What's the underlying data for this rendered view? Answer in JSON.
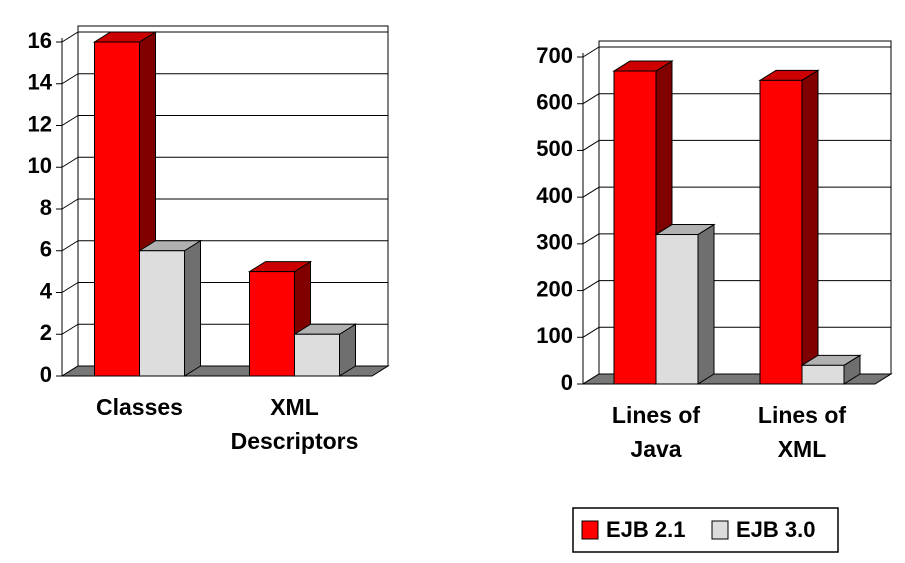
{
  "chart_data": [
    {
      "type": "bar3d",
      "categories": [
        "Classes",
        "XML Descriptors"
      ],
      "series": [
        {
          "name": "EJB 2.1",
          "color": "#ff0000",
          "values": [
            16,
            5
          ]
        },
        {
          "name": "EJB 3.0",
          "color": "#dddddd",
          "values": [
            6,
            2
          ]
        }
      ],
      "ylim": [
        0,
        16
      ],
      "yticks": [
        0,
        2,
        4,
        6,
        8,
        10,
        12,
        14,
        16
      ],
      "grid": true
    },
    {
      "type": "bar3d",
      "categories": [
        "Lines of Java",
        "Lines of XML"
      ],
      "series": [
        {
          "name": "EJB 2.1",
          "color": "#ff0000",
          "values": [
            670,
            650
          ]
        },
        {
          "name": "EJB 3.0",
          "color": "#dddddd",
          "values": [
            320,
            40
          ]
        }
      ],
      "ylim": [
        0,
        700
      ],
      "yticks": [
        0,
        100,
        200,
        300,
        400,
        500,
        600,
        700
      ],
      "grid": true,
      "legend": "bottom"
    }
  ]
}
